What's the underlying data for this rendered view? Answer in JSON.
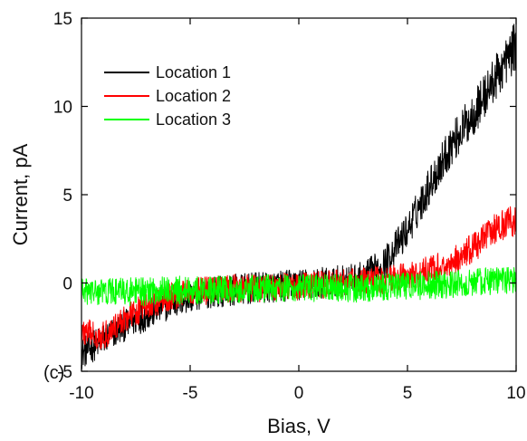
{
  "chart_data": {
    "type": "line",
    "panel_label": "(c)",
    "xlabel": "Bias, V",
    "ylabel": "Current, pA",
    "xlim": [
      -10,
      10
    ],
    "ylim": [
      -5,
      15
    ],
    "xticks": [
      -10,
      -5,
      0,
      5,
      10
    ],
    "yticks": [
      -5,
      0,
      5,
      10,
      15
    ],
    "grid": false,
    "legend_position": "top-left",
    "x": [
      -10,
      -9,
      -8,
      -7,
      -6,
      -5,
      -4,
      -3,
      -2,
      -1,
      0,
      1,
      2,
      3,
      4,
      5,
      6,
      7,
      8,
      9,
      10
    ],
    "series": [
      {
        "name": "Location 1",
        "color": "#000000",
        "noise": 0.9,
        "values": [
          -4.0,
          -3.2,
          -2.4,
          -1.8,
          -1.2,
          -0.8,
          -0.5,
          -0.4,
          -0.3,
          -0.2,
          -0.1,
          0.0,
          0.1,
          0.3,
          1.2,
          3.0,
          5.5,
          7.8,
          9.5,
          11.5,
          13.5
        ]
      },
      {
        "name": "Location 2",
        "color": "#ff0000",
        "noise": 0.8,
        "values": [
          -2.8,
          -3.0,
          -2.0,
          -1.3,
          -0.8,
          -0.5,
          -0.4,
          -0.3,
          -0.3,
          -0.2,
          -0.2,
          -0.1,
          0.0,
          0.1,
          0.2,
          0.4,
          0.7,
          1.1,
          2.0,
          3.0,
          3.6
        ]
      },
      {
        "name": "Location 3",
        "color": "#00ff00",
        "noise": 0.8,
        "values": [
          -0.5,
          -0.5,
          -0.5,
          -0.5,
          -0.4,
          -0.4,
          -0.4,
          -0.4,
          -0.3,
          -0.3,
          -0.3,
          -0.3,
          -0.3,
          -0.3,
          -0.2,
          -0.2,
          -0.1,
          -0.1,
          0.0,
          0.1,
          0.2
        ]
      }
    ]
  }
}
